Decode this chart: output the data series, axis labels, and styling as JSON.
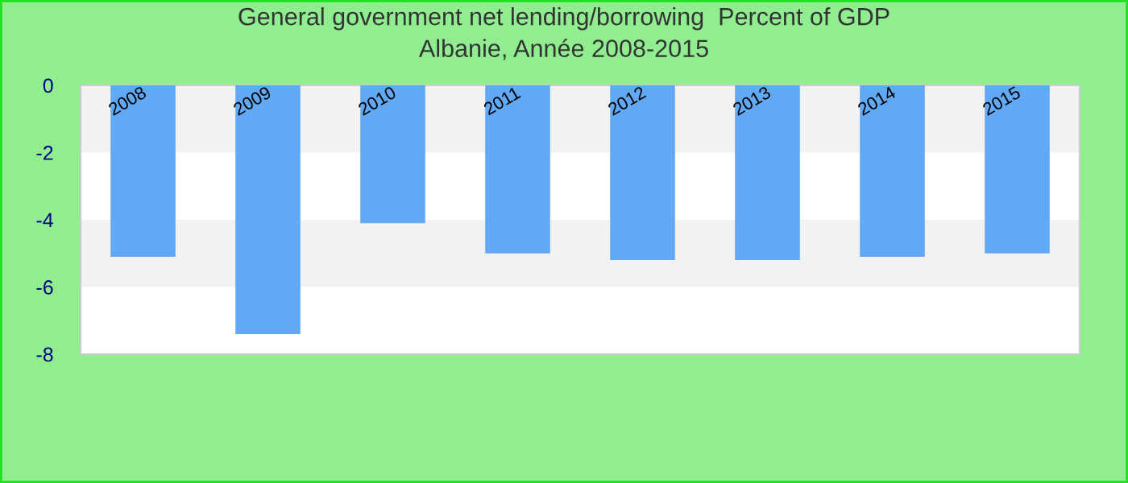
{
  "chart_data": {
    "type": "bar",
    "title": "General government net lending/borrowing  Percent of GDP\nAlbanie, Année 2008-2015",
    "categories": [
      "2008",
      "2009",
      "2010",
      "2011",
      "2012",
      "2013",
      "2014",
      "2015"
    ],
    "values": [
      -5.1,
      -7.4,
      -4.1,
      -5.0,
      -5.2,
      -5.2,
      -5.1,
      -5.0
    ],
    "color": "#61a9f5",
    "ylim": [
      -8,
      0
    ],
    "yticks": [
      -8,
      -6,
      -4,
      -2,
      0
    ],
    "bands": [
      {
        "axis": "y",
        "from": -2,
        "to": 0,
        "color": "#f2f2f2"
      },
      {
        "axis": "y",
        "from": -6,
        "to": -4,
        "color": "#f2f2f2"
      }
    ]
  }
}
